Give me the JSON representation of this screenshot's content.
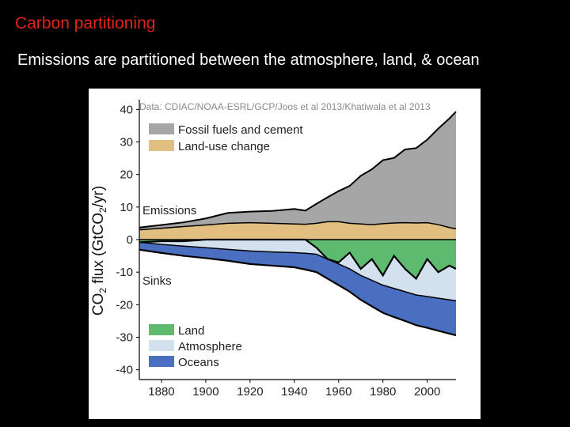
{
  "slide": {
    "title": "Carbon partitioning",
    "subtitle": "Emissions are partitioned between the atmosphere, land, & ocean"
  },
  "colors": {
    "fossil": "#a6a6a6",
    "landuse": "#e0bf80",
    "land": "#5dbb6f",
    "atmosphere": "#d3e1ef",
    "oceans": "#4a6fc0",
    "title_red": "#e2231a"
  },
  "chart_data": {
    "type": "area",
    "source_note": "Data: CDIAC/NOAA-ESRL/GCP/Joos et al 2013/Khatiwala et al 2013",
    "ylabel": "CO2 flux (GtCO2/yr)",
    "xlabel": "",
    "xlim": [
      1870,
      2013
    ],
    "ylim": [
      -43,
      43
    ],
    "yticks": [
      40,
      30,
      20,
      10,
      0,
      -10,
      -20,
      -30,
      -40
    ],
    "xticks": [
      1880,
      1900,
      1920,
      1940,
      1960,
      1980,
      2000
    ],
    "grid": false,
    "annotations": {
      "emissions": "Emissions",
      "sinks": "Sinks"
    },
    "legend_top": [
      "Fossil fuels and cement",
      "Land-use change"
    ],
    "legend_bottom": [
      "Land",
      "Atmosphere",
      "Oceans"
    ],
    "x": [
      1870,
      1880,
      1890,
      1900,
      1910,
      1920,
      1930,
      1940,
      1945,
      1950,
      1955,
      1960,
      1965,
      1970,
      1975,
      1980,
      1985,
      1990,
      1995,
      2000,
      2005,
      2010,
      2013
    ],
    "series": [
      {
        "name": "Land-use change",
        "values": [
          3.0,
          3.5,
          4.0,
          4.5,
          5.0,
          5.2,
          5.0,
          4.8,
          4.7,
          5.0,
          5.5,
          5.5,
          5.0,
          4.8,
          4.6,
          4.9,
          5.1,
          5.2,
          5.1,
          5.2,
          4.6,
          3.7,
          3.3
        ]
      },
      {
        "name": "Fossil fuels and cement",
        "values": [
          0.7,
          1.0,
          1.3,
          2.0,
          3.2,
          3.4,
          3.8,
          4.6,
          4.2,
          6.0,
          7.5,
          9.4,
          11.5,
          14.8,
          17.0,
          19.5,
          20.0,
          22.5,
          23.0,
          25.5,
          29.5,
          33.5,
          36.0
        ]
      },
      {
        "name": "Land",
        "values": [
          0.2,
          0.3,
          0.5,
          1.0,
          1.2,
          1.5,
          2.0,
          2.3,
          2.5,
          3.0,
          3.5,
          4.2,
          5.0,
          6.0,
          7.2,
          7.5,
          8.0,
          8.5,
          8.7,
          9.0,
          9.5,
          10.0,
          10.2
        ]
      },
      {
        "name": "Atmosphere",
        "values": [
          -0.8,
          -1.5,
          -2.0,
          -2.5,
          -3.0,
          -3.5,
          -3.8,
          -4.0,
          -4.2,
          -4.5,
          -6.0,
          -7.5,
          -9.0,
          -11.0,
          -12.5,
          -14.0,
          -15.0,
          -16.0,
          -17.0,
          -17.5,
          -18.0,
          -18.5,
          -18.8
        ]
      },
      {
        "name": "Oceans",
        "values": [
          -2.3,
          -2.6,
          -3.0,
          -3.2,
          -3.5,
          -4.0,
          -4.2,
          -4.5,
          -5.0,
          -5.5,
          -6.0,
          -6.5,
          -7.0,
          -7.5,
          -8.0,
          -8.5,
          -8.8,
          -9.0,
          -9.3,
          -9.6,
          -10.0,
          -10.4,
          -10.6
        ]
      },
      {
        "name": "Land (sink flux)",
        "values": [
          -0.8,
          -0.5,
          -0.5,
          0.0,
          0.0,
          0.0,
          0.0,
          0.0,
          0.0,
          -2.5,
          -6.0,
          -7.0,
          -4.0,
          -9.0,
          -6.0,
          -11.0,
          -5.0,
          -9.0,
          -12.0,
          -6.0,
          -10.0,
          -8.0,
          -9.0
        ]
      }
    ]
  }
}
